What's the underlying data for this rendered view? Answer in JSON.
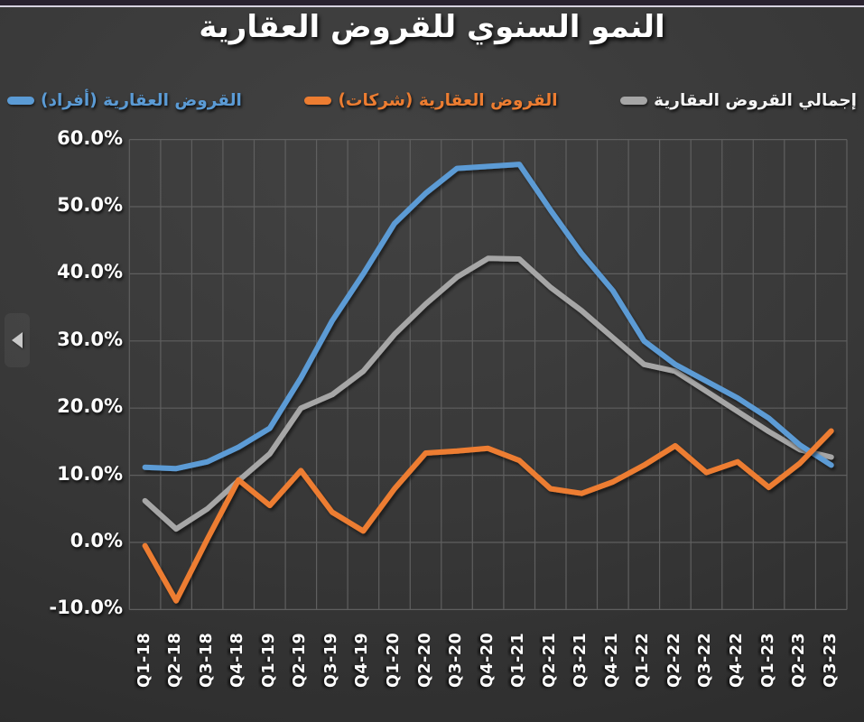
{
  "title": "النمو السنوي للقروض العقارية",
  "legend": [
    {
      "label": "إجمالي القروض العقارية",
      "swatch_color": "#A6A6A6",
      "text_color": "#F5F5F5"
    },
    {
      "label": "القروض العقارية (شركات)",
      "swatch_color": "#ED7D31",
      "text_color": "#ED7D31"
    },
    {
      "label": "القروض العقارية (أفراد)",
      "swatch_color": "#5B9BD5",
      "text_color": "#5B9BD5"
    }
  ],
  "chart_data": {
    "type": "line",
    "title": "النمو السنوي للقروض العقارية",
    "categories": [
      "Q1-18",
      "Q2-18",
      "Q3-18",
      "Q4-18",
      "Q1-19",
      "Q2-19",
      "Q3-19",
      "Q4-19",
      "Q1-20",
      "Q2-20",
      "Q3-20",
      "Q4-20",
      "Q1-21",
      "Q2-21",
      "Q3-21",
      "Q4-21",
      "Q1-22",
      "Q2-22",
      "Q3-22",
      "Q4-22",
      "Q1-23",
      "Q2-23",
      "Q3-23"
    ],
    "series": [
      {
        "name": "القروض العقارية (أفراد)",
        "color": "#5B9BD5",
        "values": [
          11.2,
          11.0,
          12.0,
          14.2,
          17.0,
          24.5,
          33.0,
          40.0,
          47.5,
          52.0,
          55.7,
          56.0,
          56.3,
          49.5,
          43.0,
          37.5,
          30.0,
          26.5,
          24.0,
          21.5,
          18.5,
          14.5,
          11.5
        ]
      },
      {
        "name": "القروض العقارية (شركات)",
        "color": "#ED7D31",
        "values": [
          -0.5,
          -8.7,
          0.5,
          9.3,
          5.5,
          10.7,
          4.5,
          1.7,
          8.0,
          13.3,
          13.6,
          14.0,
          12.2,
          8.0,
          7.3,
          9.0,
          11.5,
          14.4,
          10.4,
          12.0,
          8.2,
          11.8,
          16.6
        ]
      },
      {
        "name": "إجمالي القروض العقارية",
        "color": "#A6A6A6",
        "values": [
          6.2,
          2.0,
          5.0,
          9.2,
          13.2,
          20.0,
          22.0,
          25.5,
          31.0,
          35.5,
          39.5,
          42.3,
          42.2,
          38.0,
          34.5,
          30.5,
          26.5,
          25.5,
          22.5,
          19.5,
          16.5,
          13.8,
          12.7
        ]
      }
    ],
    "ylim": [
      -10,
      60
    ],
    "y_tick_labels": [
      "60.0%",
      "50.0%",
      "40.0%",
      "30.0%",
      "20.0%",
      "10.0%",
      "0.0%",
      "-10.0%"
    ],
    "grid": true,
    "legend_position": "top"
  },
  "colors": {
    "background_center": "#424242",
    "background_edge": "#252525",
    "gridline": "#5f5f5f",
    "top_bar": "#29222f",
    "top_bar_line": "#d6d2df",
    "text": "#ffffff"
  },
  "side_control": {
    "icon": "left-arrow"
  }
}
